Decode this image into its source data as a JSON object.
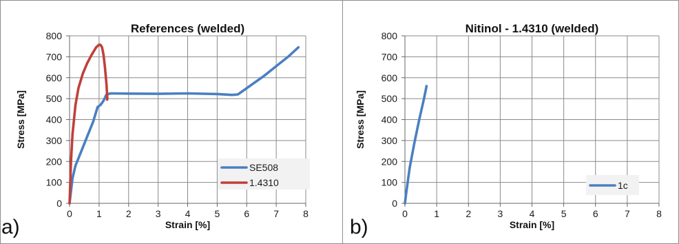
{
  "chart_data": [
    {
      "type": "line",
      "title": "References (welded)",
      "xlabel": "Strain [%]",
      "ylabel": "Stress [MPa]",
      "panel_label": "a)",
      "xlim": [
        0,
        8
      ],
      "ylim": [
        0,
        800
      ],
      "x_ticks": [
        "0",
        "1",
        "2",
        "3",
        "4",
        "5",
        "6",
        "7",
        "8"
      ],
      "y_ticks": [
        "0",
        "100",
        "200",
        "300",
        "400",
        "500",
        "600",
        "700",
        "800"
      ],
      "grid": true,
      "legend_position": "bottom-right",
      "series": [
        {
          "name": "SE508",
          "color": "#4a7fc1",
          "x": [
            0,
            0.1,
            0.2,
            0.4,
            0.6,
            0.8,
            0.95,
            1.05,
            1.15,
            1.25,
            1.4,
            2.0,
            3.0,
            4.0,
            5.0,
            5.5,
            5.7,
            5.9,
            6.2,
            6.6,
            7.0,
            7.4,
            7.75
          ],
          "y": [
            0,
            120,
            180,
            250,
            320,
            390,
            460,
            470,
            490,
            520,
            525,
            524,
            523,
            525,
            522,
            518,
            520,
            540,
            570,
            610,
            655,
            700,
            745
          ]
        },
        {
          "name": "1.4310",
          "color": "#c0403a",
          "x": [
            0,
            0.05,
            0.1,
            0.2,
            0.3,
            0.45,
            0.6,
            0.75,
            0.9,
            1.0,
            1.05,
            1.1,
            1.15,
            1.2,
            1.25,
            1.27,
            1.28,
            1.27
          ],
          "y": [
            0,
            200,
            330,
            470,
            550,
            620,
            670,
            710,
            745,
            758,
            757,
            745,
            710,
            650,
            570,
            520,
            500,
            495
          ]
        }
      ]
    },
    {
      "type": "line",
      "title": "Nitinol - 1.4310 (welded)",
      "xlabel": "Strain [%]",
      "ylabel": "Stress [MPa]",
      "panel_label": "b)",
      "xlim": [
        0,
        8
      ],
      "ylim": [
        0,
        800
      ],
      "x_ticks": [
        "0",
        "1",
        "2",
        "3",
        "4",
        "5",
        "6",
        "7",
        "8"
      ],
      "y_ticks": [
        "0",
        "100",
        "200",
        "300",
        "400",
        "500",
        "600",
        "700",
        "800"
      ],
      "grid": true,
      "legend_position": "bottom-right",
      "series": [
        {
          "name": "1c",
          "color": "#4a7fc1",
          "x": [
            0,
            0.05,
            0.15,
            0.3,
            0.45,
            0.6,
            0.68
          ],
          "y": [
            0,
            60,
            170,
            290,
            400,
            500,
            560
          ]
        }
      ]
    }
  ]
}
